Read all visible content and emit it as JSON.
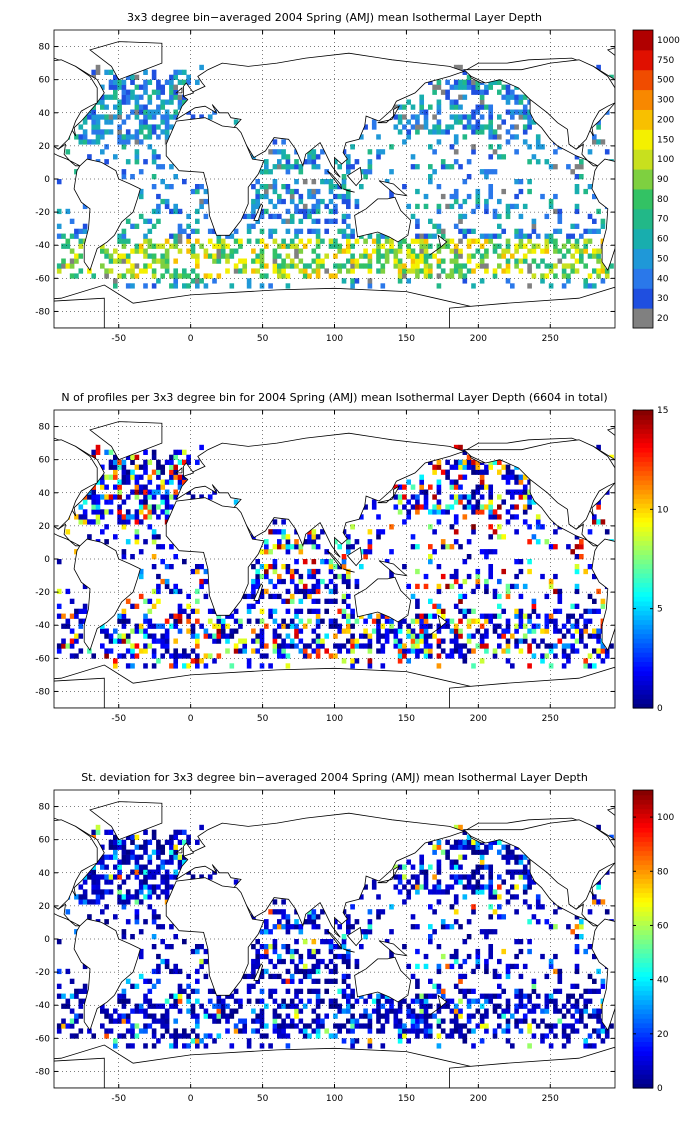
{
  "chart_data": [
    {
      "type": "heatmap",
      "title": "3x3 degree bin−averaged 2004 Spring (AMJ) mean Isothermal Layer Depth",
      "xlim": [
        -95,
        295
      ],
      "ylim": [
        -90,
        90
      ],
      "xticks": [
        -50,
        0,
        50,
        100,
        150,
        200,
        250
      ],
      "yticks": [
        80,
        60,
        40,
        20,
        0,
        -20,
        -40,
        -60,
        -80
      ],
      "grid": true,
      "colorbar": {
        "position": "right",
        "scale": "categorical",
        "labels": [
          "20",
          "30",
          "40",
          "50",
          "60",
          "70",
          "80",
          "90",
          "100",
          "150",
          "200",
          "300",
          "500",
          "750",
          "1000"
        ],
        "colors": [
          "#808080",
          "#1f4fe0",
          "#2a78ea",
          "#1f98d8",
          "#18aeae",
          "#22b888",
          "#33c264",
          "#7ed040",
          "#c8e01e",
          "#f4f000",
          "#f8c000",
          "#f88800",
          "#f04c00",
          "#e01000",
          "#b00000"
        ],
        "top_color": "#a01010"
      },
      "bins_summary": "3x3 degree bins, sparse global coverage; mostly 20-80 m, 80-150 m in Southern Ocean band near 40-60S"
    },
    {
      "type": "heatmap",
      "title": "N of profiles per 3x3 degree bin for 2004 Spring (AMJ) mean Isothermal Layer Depth  (6604 in total)",
      "xlim": [
        -95,
        295
      ],
      "ylim": [
        -90,
        90
      ],
      "xticks": [
        -50,
        0,
        50,
        100,
        150,
        200,
        250
      ],
      "yticks": [
        80,
        60,
        40,
        20,
        0,
        -20,
        -40,
        -60,
        -80
      ],
      "grid": true,
      "colorbar": {
        "position": "right",
        "min": 0,
        "max": 15,
        "ticks": [
          0,
          5,
          10,
          15
        ],
        "colormap": "jet"
      }
    },
    {
      "type": "heatmap",
      "title": "St. deviation for 3x3 degree bin−averaged 2004 Spring (AMJ) mean Isothermal Layer Depth",
      "xlim": [
        -95,
        295
      ],
      "ylim": [
        -90,
        90
      ],
      "xticks": [
        -50,
        0,
        50,
        100,
        150,
        200,
        250
      ],
      "yticks": [
        80,
        60,
        40,
        20,
        0,
        -20,
        -40,
        -60,
        -80
      ],
      "grid": true,
      "colorbar": {
        "position": "right",
        "min": 0,
        "max": 110,
        "ticks": [
          0,
          20,
          40,
          60,
          80,
          100
        ],
        "colormap": "jet"
      }
    }
  ]
}
